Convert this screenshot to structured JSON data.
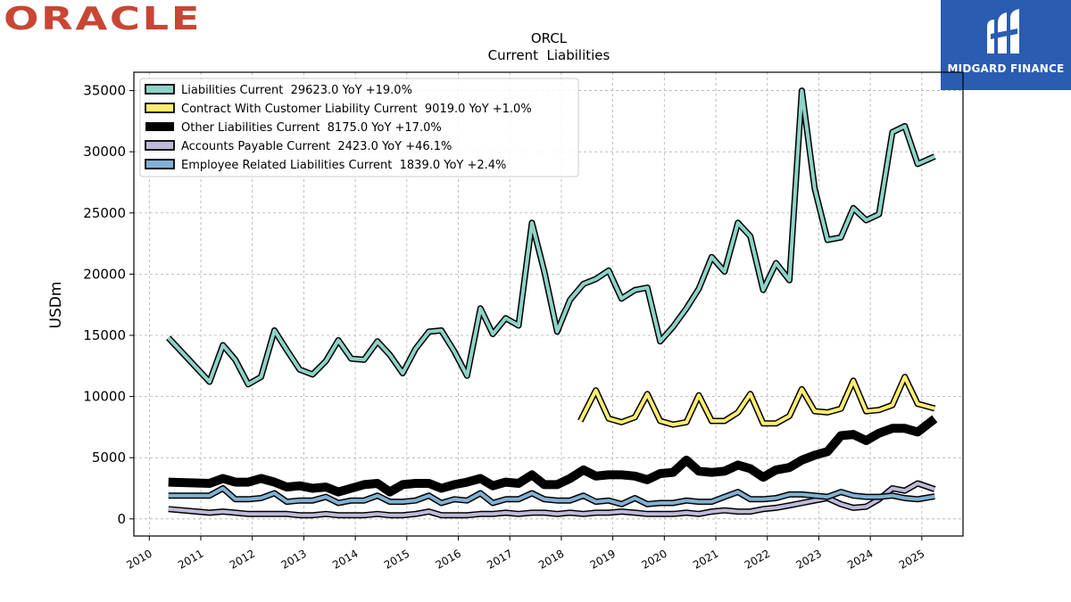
{
  "brand": {
    "left_logo_text": "ORACLE",
    "right_logo_text": "MIDGARD FINANCE"
  },
  "colors": {
    "oracle_red": "#c74634",
    "badge_blue": "#2a5cb2"
  },
  "chart_data": {
    "type": "line",
    "title": "ORCL",
    "subtitle": "Current  Liabilities",
    "ylabel": "USDm",
    "xlabel": "",
    "xlim": [
      2009.7,
      2025.8
    ],
    "ylim": [
      -1400,
      36500
    ],
    "x_ticks": [
      "2010",
      "2011",
      "2012",
      "2013",
      "2014",
      "2015",
      "2016",
      "2017",
      "2018",
      "2019",
      "2020",
      "2021",
      "2022",
      "2023",
      "2024",
      "2025"
    ],
    "y_ticks": [
      "0",
      "5000",
      "10000",
      "15000",
      "20000",
      "25000",
      "30000",
      "35000"
    ],
    "grid": true,
    "legend_position": "top-left",
    "series": [
      {
        "name": "Liabilities Current",
        "legend": "Liabilities Current  29623.0 YoY +19.0%",
        "color": "#8dd3c7",
        "width": 4,
        "x": [
          2010.37,
          2011.17,
          2011.43,
          2011.67,
          2011.92,
          2012.17,
          2012.43,
          2012.67,
          2012.92,
          2013.17,
          2013.43,
          2013.67,
          2013.92,
          2014.17,
          2014.43,
          2014.67,
          2014.92,
          2015.17,
          2015.43,
          2015.67,
          2015.92,
          2016.17,
          2016.43,
          2016.67,
          2016.92,
          2017.17,
          2017.43,
          2017.67,
          2017.92,
          2018.17,
          2018.43,
          2018.67,
          2018.92,
          2019.17,
          2019.43,
          2019.67,
          2019.92,
          2020.17,
          2020.43,
          2020.67,
          2020.92,
          2021.17,
          2021.43,
          2021.67,
          2021.92,
          2022.17,
          2022.43,
          2022.67,
          2022.92,
          2023.17,
          2023.43,
          2023.67,
          2023.92,
          2024.17,
          2024.43,
          2024.67,
          2024.92,
          2025.25
        ],
        "y": [
          14800,
          11200,
          14200,
          13000,
          11000,
          11600,
          15400,
          13800,
          12200,
          11800,
          12900,
          14600,
          13100,
          13000,
          14500,
          13400,
          11900,
          13900,
          15300,
          15400,
          13700,
          11700,
          17200,
          15100,
          16400,
          15800,
          24200,
          20200,
          15300,
          17900,
          19200,
          19600,
          20300,
          18000,
          18700,
          18900,
          14500,
          15700,
          17200,
          18800,
          21400,
          20200,
          24200,
          23100,
          18700,
          20900,
          19500,
          35000,
          27000,
          22800,
          23000,
          25400,
          24400,
          24900,
          31600,
          32100,
          29000,
          29623
        ]
      },
      {
        "name": "Contract With Customer Liability Current",
        "legend": "Contract With Customer Liability Current  9019.0 YoY +1.0%",
        "color": "#ffed6f",
        "width": 4,
        "x": [
          2018.37,
          2018.67,
          2018.92,
          2019.17,
          2019.43,
          2019.67,
          2019.92,
          2020.17,
          2020.43,
          2020.67,
          2020.92,
          2021.17,
          2021.43,
          2021.67,
          2021.92,
          2022.17,
          2022.43,
          2022.67,
          2022.92,
          2023.17,
          2023.43,
          2023.67,
          2023.92,
          2024.17,
          2024.43,
          2024.67,
          2024.92,
          2025.25
        ],
        "y": [
          8000,
          10500,
          8200,
          7900,
          8300,
          10200,
          8000,
          7700,
          7900,
          10100,
          8000,
          8000,
          8700,
          10200,
          7800,
          7800,
          8400,
          10600,
          8800,
          8700,
          9000,
          11300,
          8800,
          8900,
          9300,
          11600,
          9400,
          9019
        ]
      },
      {
        "name": "Other Liabilities Current",
        "legend": "Other Liabilities Current  8175.0 YoY +17.0%",
        "color": "#000000",
        "width": 10,
        "x": [
          2010.37,
          2011.17,
          2011.43,
          2011.67,
          2011.92,
          2012.17,
          2012.43,
          2012.67,
          2012.92,
          2013.17,
          2013.43,
          2013.67,
          2013.92,
          2014.17,
          2014.43,
          2014.67,
          2014.92,
          2015.17,
          2015.43,
          2015.67,
          2015.92,
          2016.17,
          2016.43,
          2016.67,
          2016.92,
          2017.17,
          2017.43,
          2017.67,
          2017.92,
          2018.17,
          2018.43,
          2018.67,
          2018.92,
          2019.17,
          2019.43,
          2019.67,
          2019.92,
          2020.17,
          2020.43,
          2020.67,
          2020.92,
          2021.17,
          2021.43,
          2021.67,
          2021.92,
          2022.17,
          2022.43,
          2022.67,
          2022.92,
          2023.17,
          2023.43,
          2023.67,
          2023.92,
          2024.17,
          2024.43,
          2024.67,
          2024.92,
          2025.25
        ],
        "y": [
          3000,
          2900,
          3300,
          3000,
          3000,
          3300,
          3000,
          2600,
          2700,
          2500,
          2600,
          2200,
          2500,
          2800,
          2900,
          2200,
          2800,
          2900,
          2900,
          2500,
          2800,
          3000,
          3300,
          2700,
          3000,
          2900,
          3600,
          2800,
          2800,
          3300,
          4000,
          3500,
          3600,
          3600,
          3500,
          3200,
          3700,
          3800,
          4800,
          3900,
          3800,
          3900,
          4400,
          4100,
          3400,
          4000,
          4200,
          4800,
          5200,
          5500,
          6800,
          6900,
          6400,
          7000,
          7400,
          7400,
          7100,
          8175
        ]
      },
      {
        "name": "Accounts Payable Current",
        "legend": "Accounts Payable Current  2423.0 YoY +46.1%",
        "color": "#bebada",
        "width": 4,
        "x": [
          2010.37,
          2011.17,
          2011.43,
          2011.67,
          2011.92,
          2012.17,
          2012.43,
          2012.67,
          2012.92,
          2013.17,
          2013.43,
          2013.67,
          2013.92,
          2014.17,
          2014.43,
          2014.67,
          2014.92,
          2015.17,
          2015.43,
          2015.67,
          2015.92,
          2016.17,
          2016.43,
          2016.67,
          2016.92,
          2017.17,
          2017.43,
          2017.67,
          2017.92,
          2018.17,
          2018.43,
          2018.67,
          2018.92,
          2019.17,
          2019.43,
          2019.67,
          2019.92,
          2020.17,
          2020.43,
          2020.67,
          2020.92,
          2021.17,
          2021.43,
          2021.67,
          2021.92,
          2022.17,
          2022.43,
          2022.67,
          2022.92,
          2023.17,
          2023.43,
          2023.67,
          2023.92,
          2024.17,
          2024.43,
          2024.67,
          2024.92,
          2025.25
        ],
        "y": [
          800,
          500,
          600,
          500,
          400,
          400,
          400,
          400,
          300,
          300,
          400,
          300,
          300,
          300,
          400,
          300,
          300,
          400,
          600,
          300,
          300,
          300,
          400,
          400,
          500,
          400,
          500,
          500,
          400,
          500,
          400,
          500,
          500,
          600,
          500,
          400,
          400,
          400,
          500,
          400,
          600,
          700,
          600,
          600,
          800,
          900,
          1100,
          1300,
          1500,
          1700,
          1200,
          900,
          1000,
          1600,
          2500,
          2300,
          2900,
          2423
        ]
      },
      {
        "name": "Employee Related Liabilities Current",
        "legend": "Employee Related Liabilities Current  1839.0 YoY +2.4%",
        "color": "#80b1d3",
        "width": 4,
        "x": [
          2010.37,
          2011.17,
          2011.43,
          2011.67,
          2011.92,
          2012.17,
          2012.43,
          2012.67,
          2012.92,
          2013.17,
          2013.43,
          2013.67,
          2013.92,
          2014.17,
          2014.43,
          2014.67,
          2014.92,
          2015.17,
          2015.43,
          2015.67,
          2015.92,
          2016.17,
          2016.43,
          2016.67,
          2016.92,
          2017.17,
          2017.43,
          2017.67,
          2017.92,
          2018.17,
          2018.43,
          2018.67,
          2018.92,
          2019.17,
          2019.43,
          2019.67,
          2019.92,
          2020.17,
          2020.43,
          2020.67,
          2020.92,
          2021.17,
          2021.43,
          2021.67,
          2021.92,
          2022.17,
          2022.43,
          2022.67,
          2022.92,
          2023.17,
          2023.43,
          2023.67,
          2023.92,
          2024.17,
          2024.43,
          2024.67,
          2024.92,
          2025.25
        ],
        "y": [
          1900,
          1900,
          2500,
          1600,
          1600,
          1700,
          2100,
          1400,
          1500,
          1500,
          1800,
          1300,
          1500,
          1500,
          1900,
          1400,
          1400,
          1500,
          1900,
          1300,
          1600,
          1500,
          2100,
          1300,
          1600,
          1600,
          2100,
          1600,
          1500,
          1500,
          1900,
          1400,
          1500,
          1200,
          1700,
          1200,
          1300,
          1300,
          1500,
          1400,
          1400,
          1800,
          2200,
          1600,
          1600,
          1700,
          2000,
          2000,
          1900,
          1800,
          2200,
          1900,
          1800,
          1800,
          1900,
          1700,
          1600,
          1839
        ]
      }
    ]
  }
}
